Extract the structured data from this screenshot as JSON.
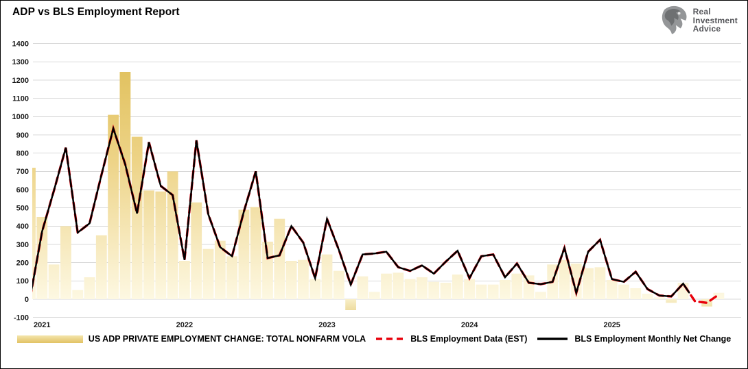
{
  "window": {
    "title": "ADP vs BLS Employment Report"
  },
  "logo": {
    "name": "real-investment-advice-logo",
    "line1": "Real",
    "line2": "Investment",
    "line3": "Advice"
  },
  "legend": {
    "adp_label": "US ADP PRIVATE EMPLOYMENT CHANGE: TOTAL NONFARM VOLA",
    "est_label": "BLS Employment Data (EST)",
    "bls_label": "BLS Employment Monthly Net Change"
  },
  "colors": {
    "bar_top": "#DEBD55",
    "bar_mid": "#EDD386",
    "bar_bottom": "#FDF8E2",
    "neg_bar_near": "#F8EFC9",
    "neg_bar_far": "#E2C46A",
    "bls_line": "#000000",
    "est_line": "#E8000B",
    "gridline": "#D8D8D8"
  },
  "chart_data": {
    "type": "bar+line",
    "title": "ADP vs BLS Employment Report",
    "ylim": [
      -100,
      1400
    ],
    "ytick_step": 100,
    "grid": "horizontal",
    "legend_position": "bottom",
    "x_year_labels": [
      "2021",
      "2022",
      "2023",
      "2024",
      "2025"
    ],
    "months": [
      "2020-12",
      "2021-01",
      "2021-02",
      "2021-03",
      "2021-04",
      "2021-05",
      "2021-06",
      "2021-07",
      "2021-08",
      "2021-09",
      "2021-10",
      "2021-11",
      "2021-12",
      "2022-01",
      "2022-02",
      "2022-03",
      "2022-04",
      "2022-05",
      "2022-06",
      "2022-07",
      "2022-08",
      "2022-09",
      "2022-10",
      "2022-11",
      "2022-12",
      "2023-01",
      "2023-02",
      "2023-03",
      "2023-04",
      "2023-05",
      "2023-06",
      "2023-07",
      "2023-08",
      "2023-09",
      "2023-10",
      "2023-11",
      "2023-12",
      "2024-01",
      "2024-02",
      "2024-03",
      "2024-04",
      "2024-05",
      "2024-06",
      "2024-07",
      "2024-08",
      "2024-09",
      "2024-10",
      "2024-11",
      "2024-12",
      "2025-01",
      "2025-02",
      "2025-03",
      "2025-04",
      "2025-05",
      "2025-06",
      "2025-07",
      "2025-08",
      "2025-09",
      "2025-10"
    ],
    "series": [
      {
        "name": "US ADP PRIVATE EMPLOYMENT CHANGE: TOTAL NONFARM VOLA",
        "type": "bar",
        "values": [
          720,
          450,
          190,
          400,
          50,
          120,
          350,
          1010,
          1245,
          890,
          595,
          590,
          700,
          210,
          530,
          275,
          320,
          235,
          490,
          505,
          315,
          440,
          210,
          215,
          110,
          245,
          155,
          -60,
          125,
          40,
          140,
          145,
          110,
          120,
          95,
          90,
          135,
          110,
          80,
          80,
          105,
          140,
          130,
          40,
          190,
          215,
          195,
          170,
          175,
          105,
          80,
          60,
          30,
          10,
          -20,
          90,
          null,
          -40,
          35
        ]
      },
      {
        "name": "BLS Employment Monthly Net Change",
        "type": "line",
        "values": [
          10,
          370,
          595,
          830,
          365,
          415,
          680,
          935,
          740,
          470,
          860,
          620,
          570,
          215,
          870,
          465,
          285,
          235,
          480,
          700,
          225,
          240,
          400,
          310,
          115,
          440,
          270,
          80,
          245,
          250,
          260,
          175,
          155,
          185,
          140,
          205,
          265,
          115,
          235,
          245,
          120,
          195,
          90,
          82,
          95,
          280,
          35,
          260,
          325,
          110,
          95,
          150,
          55,
          20,
          15,
          85
        ]
      },
      {
        "name": "BLS Employment Data (EST)",
        "type": "line-dashed",
        "est_tail_months": [
          "2025-08",
          "2025-09",
          "2025-10"
        ],
        "est_tail_values": [
          -12,
          -20,
          25
        ]
      }
    ]
  }
}
